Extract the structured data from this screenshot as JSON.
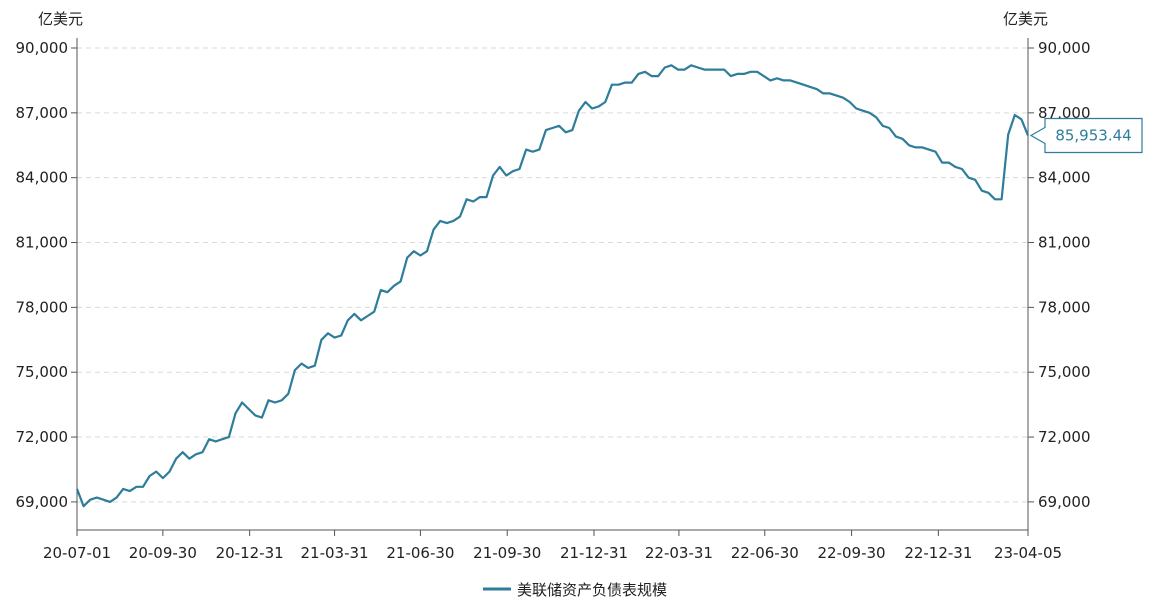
{
  "chart_data": {
    "type": "line",
    "y_unit_left": "亿美元",
    "y_unit_right": "亿美元",
    "ylim": [
      67700,
      90000
    ],
    "y_ticks": [
      69000,
      72000,
      75000,
      78000,
      81000,
      84000,
      87000,
      90000
    ],
    "y_tick_labels": [
      "69,000",
      "72,000",
      "75,000",
      "78,000",
      "81,000",
      "84,000",
      "87,000",
      "90,000"
    ],
    "x_ticks": [
      "2020-07-01",
      "2020-09-30",
      "2020-12-31",
      "2021-03-31",
      "2021-06-30",
      "2021-09-30",
      "2021-12-31",
      "2022-03-31",
      "2022-06-30",
      "2022-09-30",
      "2022-12-31",
      "2023-04-05"
    ],
    "x_tick_labels": [
      "20-07-01",
      "20-09-30",
      "20-12-31",
      "21-03-31",
      "21-06-30",
      "21-09-30",
      "21-12-31",
      "22-03-31",
      "22-06-30",
      "22-09-30",
      "22-12-31",
      "23-04-05"
    ],
    "xlim": [
      "2020-07-01",
      "2023-04-05"
    ],
    "grid": "horizontal-dashed",
    "legend_position": "bottom-center",
    "line_color": "#2e7d9a",
    "series": [
      {
        "name": "美联储资产负债表规模",
        "x": [
          "2020-07-01",
          "2020-07-08",
          "2020-07-15",
          "2020-07-22",
          "2020-07-29",
          "2020-08-05",
          "2020-08-12",
          "2020-08-19",
          "2020-08-26",
          "2020-09-02",
          "2020-09-09",
          "2020-09-16",
          "2020-09-23",
          "2020-09-30",
          "2020-10-07",
          "2020-10-14",
          "2020-10-21",
          "2020-10-28",
          "2020-11-04",
          "2020-11-11",
          "2020-11-18",
          "2020-11-25",
          "2020-12-02",
          "2020-12-09",
          "2020-12-16",
          "2020-12-23",
          "2020-12-30",
          "2021-01-06",
          "2021-01-13",
          "2021-01-20",
          "2021-01-27",
          "2021-02-03",
          "2021-02-10",
          "2021-02-17",
          "2021-02-24",
          "2021-03-03",
          "2021-03-10",
          "2021-03-17",
          "2021-03-24",
          "2021-03-31",
          "2021-04-07",
          "2021-04-14",
          "2021-04-21",
          "2021-04-28",
          "2021-05-05",
          "2021-05-12",
          "2021-05-19",
          "2021-05-26",
          "2021-06-02",
          "2021-06-09",
          "2021-06-16",
          "2021-06-23",
          "2021-06-30",
          "2021-07-07",
          "2021-07-14",
          "2021-07-21",
          "2021-07-28",
          "2021-08-04",
          "2021-08-11",
          "2021-08-18",
          "2021-08-25",
          "2021-09-01",
          "2021-09-08",
          "2021-09-15",
          "2021-09-22",
          "2021-09-29",
          "2021-10-06",
          "2021-10-13",
          "2021-10-20",
          "2021-10-27",
          "2021-11-03",
          "2021-11-10",
          "2021-11-17",
          "2021-11-24",
          "2021-12-01",
          "2021-12-08",
          "2021-12-15",
          "2021-12-22",
          "2021-12-29",
          "2022-01-05",
          "2022-01-12",
          "2022-01-19",
          "2022-01-26",
          "2022-02-02",
          "2022-02-09",
          "2022-02-16",
          "2022-02-23",
          "2022-03-02",
          "2022-03-09",
          "2022-03-16",
          "2022-03-23",
          "2022-03-30",
          "2022-04-06",
          "2022-04-13",
          "2022-04-20",
          "2022-04-27",
          "2022-05-04",
          "2022-05-11",
          "2022-05-18",
          "2022-05-25",
          "2022-06-01",
          "2022-06-08",
          "2022-06-15",
          "2022-06-22",
          "2022-06-29",
          "2022-07-06",
          "2022-07-13",
          "2022-07-20",
          "2022-07-27",
          "2022-08-03",
          "2022-08-10",
          "2022-08-17",
          "2022-08-24",
          "2022-08-31",
          "2022-09-07",
          "2022-09-14",
          "2022-09-21",
          "2022-09-28",
          "2022-10-05",
          "2022-10-12",
          "2022-10-19",
          "2022-10-26",
          "2022-11-02",
          "2022-11-09",
          "2022-11-16",
          "2022-11-23",
          "2022-11-30",
          "2022-12-07",
          "2022-12-14",
          "2022-12-21",
          "2022-12-28",
          "2023-01-04",
          "2023-01-11",
          "2023-01-18",
          "2023-01-25",
          "2023-02-01",
          "2023-02-08",
          "2023-02-15",
          "2023-02-22",
          "2023-03-01",
          "2023-03-08",
          "2023-03-15",
          "2023-03-22",
          "2023-03-29",
          "2023-04-05"
        ],
        "values": [
          69600,
          68800,
          69100,
          69200,
          69100,
          69000,
          69200,
          69600,
          69500,
          69700,
          69700,
          70200,
          70400,
          70100,
          70400,
          71000,
          71300,
          71000,
          71200,
          71300,
          71900,
          71800,
          71900,
          72000,
          73100,
          73600,
          73300,
          73000,
          72900,
          73700,
          73600,
          73700,
          74000,
          75100,
          75400,
          75200,
          75300,
          76500,
          76800,
          76600,
          76700,
          77400,
          77700,
          77400,
          77600,
          77800,
          78800,
          78700,
          79000,
          79200,
          80300,
          80600,
          80400,
          80600,
          81600,
          82000,
          81900,
          82000,
          82200,
          83000,
          82900,
          83100,
          83100,
          84100,
          84500,
          84100,
          84300,
          84400,
          85300,
          85200,
          85300,
          86200,
          86300,
          86400,
          86100,
          86200,
          87100,
          87500,
          87200,
          87300,
          87500,
          88300,
          88300,
          88400,
          88400,
          88800,
          88900,
          88700,
          88700,
          89100,
          89200,
          89000,
          89000,
          89200,
          89100,
          89000,
          89000,
          89000,
          89000,
          88700,
          88800,
          88800,
          88900,
          88900,
          88700,
          88500,
          88600,
          88500,
          88500,
          88400,
          88300,
          88200,
          88100,
          87900,
          87900,
          87800,
          87700,
          87500,
          87200,
          87100,
          87000,
          86800,
          86400,
          86300,
          85900,
          85800,
          85500,
          85400,
          85400,
          85300,
          85200,
          84700,
          84700,
          84500,
          84400,
          84000,
          83900,
          83400,
          83300,
          83000,
          83000,
          86000,
          86900,
          86700,
          85953.44
        ]
      }
    ],
    "last_value_label": "85,953.44"
  }
}
